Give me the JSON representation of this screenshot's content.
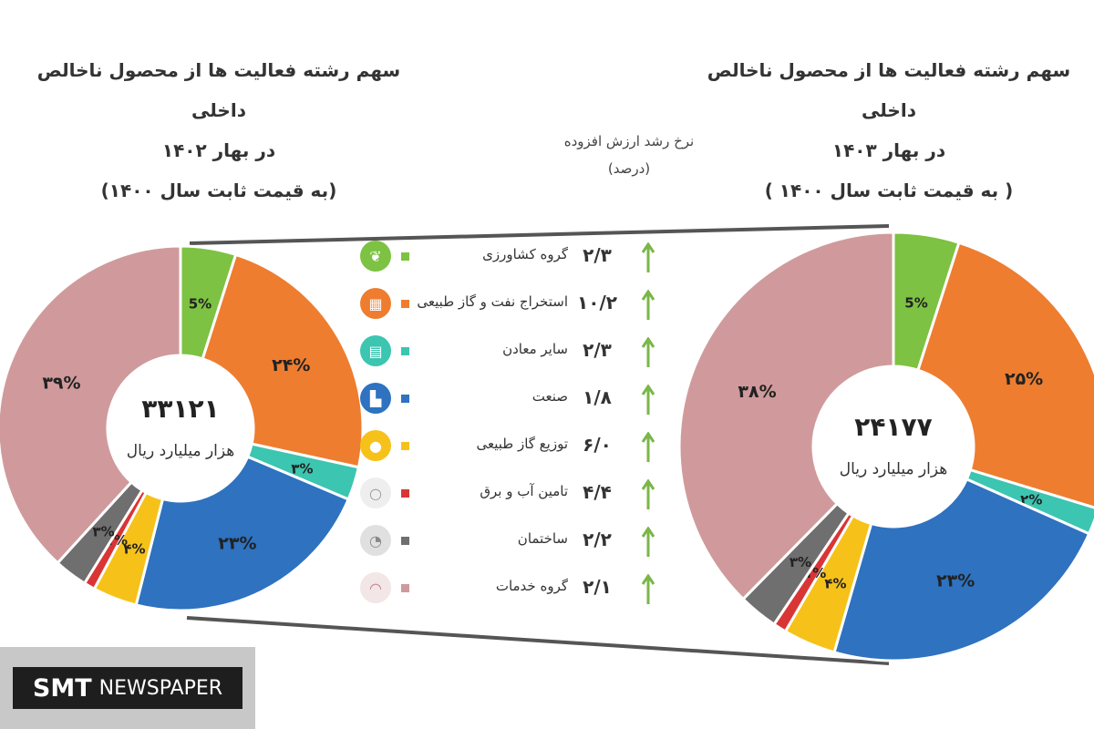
{
  "titles": {
    "left": [
      "سهم رشته فعالیت ها از محصول ناخالص داخلی",
      "در بهار ۱۴۰۲",
      "(به قیمت ثابت سال ۱۴۰۰)"
    ],
    "right": [
      "سهم رشته فعالیت ها از محصول ناخالص داخلی",
      "در بهار ۱۴۰۳",
      "( به قیمت ثابت سال ۱۴۰۰ )"
    ],
    "growth_header": [
      "نرخ رشد ارزش افزوده",
      "(درصد)"
    ]
  },
  "colors": {
    "agriculture": "#7dc242",
    "oil_gas": "#ee7d30",
    "mining": "#3cc5b0",
    "manufacturing": "#2e72c0",
    "gas_distribution": "#f6c21a",
    "water_power": "#d93535",
    "construction": "#6f6f6f",
    "services": "#d09a9c",
    "arrow": "#7ab648"
  },
  "legend": [
    {
      "label": "گروه کشاورزی",
      "rate": "۲/۳",
      "color_key": "agriculture",
      "icon": "wheat-icon",
      "glyph": "❦"
    },
    {
      "label": "استخراج نفت و گاز طبیعی",
      "rate": "۱۰/۲",
      "color_key": "oil_gas",
      "icon": "oil-barrel-icon",
      "glyph": "▦"
    },
    {
      "label": "سایر معادن",
      "rate": "۲/۳",
      "color_key": "mining",
      "icon": "mine-cart-icon",
      "glyph": "▤"
    },
    {
      "label": "صنعت",
      "rate": "۱/۸",
      "color_key": "manufacturing",
      "icon": "factory-icon",
      "glyph": "▙"
    },
    {
      "label": "توزیع گاز طبیعی",
      "rate": "۶/۰",
      "color_key": "gas_distribution",
      "icon": "gas-drop-icon",
      "glyph": "●"
    },
    {
      "label": "تامین آب و برق",
      "rate": "۴/۴",
      "color_key": "water_power",
      "icon": "lightbulb-icon",
      "glyph": "○"
    },
    {
      "label": "ساختمان",
      "rate": "۲/۲",
      "color_key": "construction",
      "icon": "construction-icon",
      "glyph": "◔"
    },
    {
      "label": "گروه خدمات",
      "rate": "۲/۱",
      "color_key": "services",
      "icon": "service-bell-icon",
      "glyph": "◠"
    }
  ],
  "chart_data": [
    {
      "type": "pie",
      "title": "سهم رشته فعالیت ها از محصول ناخالص داخلی در بهار ۱۴۰۲ (به قیمت ثابت سال ۱۴۰۰)",
      "center_value": "۳۳۱۲۱",
      "center_unit": "هزار میلیارد ریال",
      "categories": [
        "گروه کشاورزی",
        "استخراج نفت و گاز طبیعی",
        "سایر معادن",
        "صنعت",
        "توزیع گاز طبیعی",
        "تامین آب و برق",
        "ساختمان",
        "گروه خدمات"
      ],
      "values": [
        5,
        24,
        3,
        23,
        4,
        1,
        3,
        39
      ],
      "labels": [
        "5%",
        "۲۴%",
        "۳%",
        "۲۳%",
        "۴%",
        "۱%",
        "۳%",
        "۳۹%"
      ]
    },
    {
      "type": "pie",
      "title": "سهم رشته فعالیت ها از محصول ناخالص داخلی در بهار ۱۴۰۳ (به قیمت ثابت سال ۱۴۰۰)",
      "center_value": "۲۴۱۷۷",
      "center_unit": "هزار میلیارد ریال",
      "categories": [
        "گروه کشاورزی",
        "استخراج نفت و گاز طبیعی",
        "سایر معادن",
        "صنعت",
        "توزیع گاز طبیعی",
        "تامین آب و برق",
        "ساختمان",
        "گروه خدمات"
      ],
      "values": [
        5,
        25,
        2,
        23,
        4,
        1,
        3,
        38
      ],
      "labels": [
        "5%",
        "۲۵%",
        "۲%",
        "۲۳%",
        "۴%",
        "۱%",
        "۳%",
        "۳۸%"
      ]
    }
  ],
  "logo": {
    "strong": "SMT",
    "rest": "NEWSPAPER"
  }
}
